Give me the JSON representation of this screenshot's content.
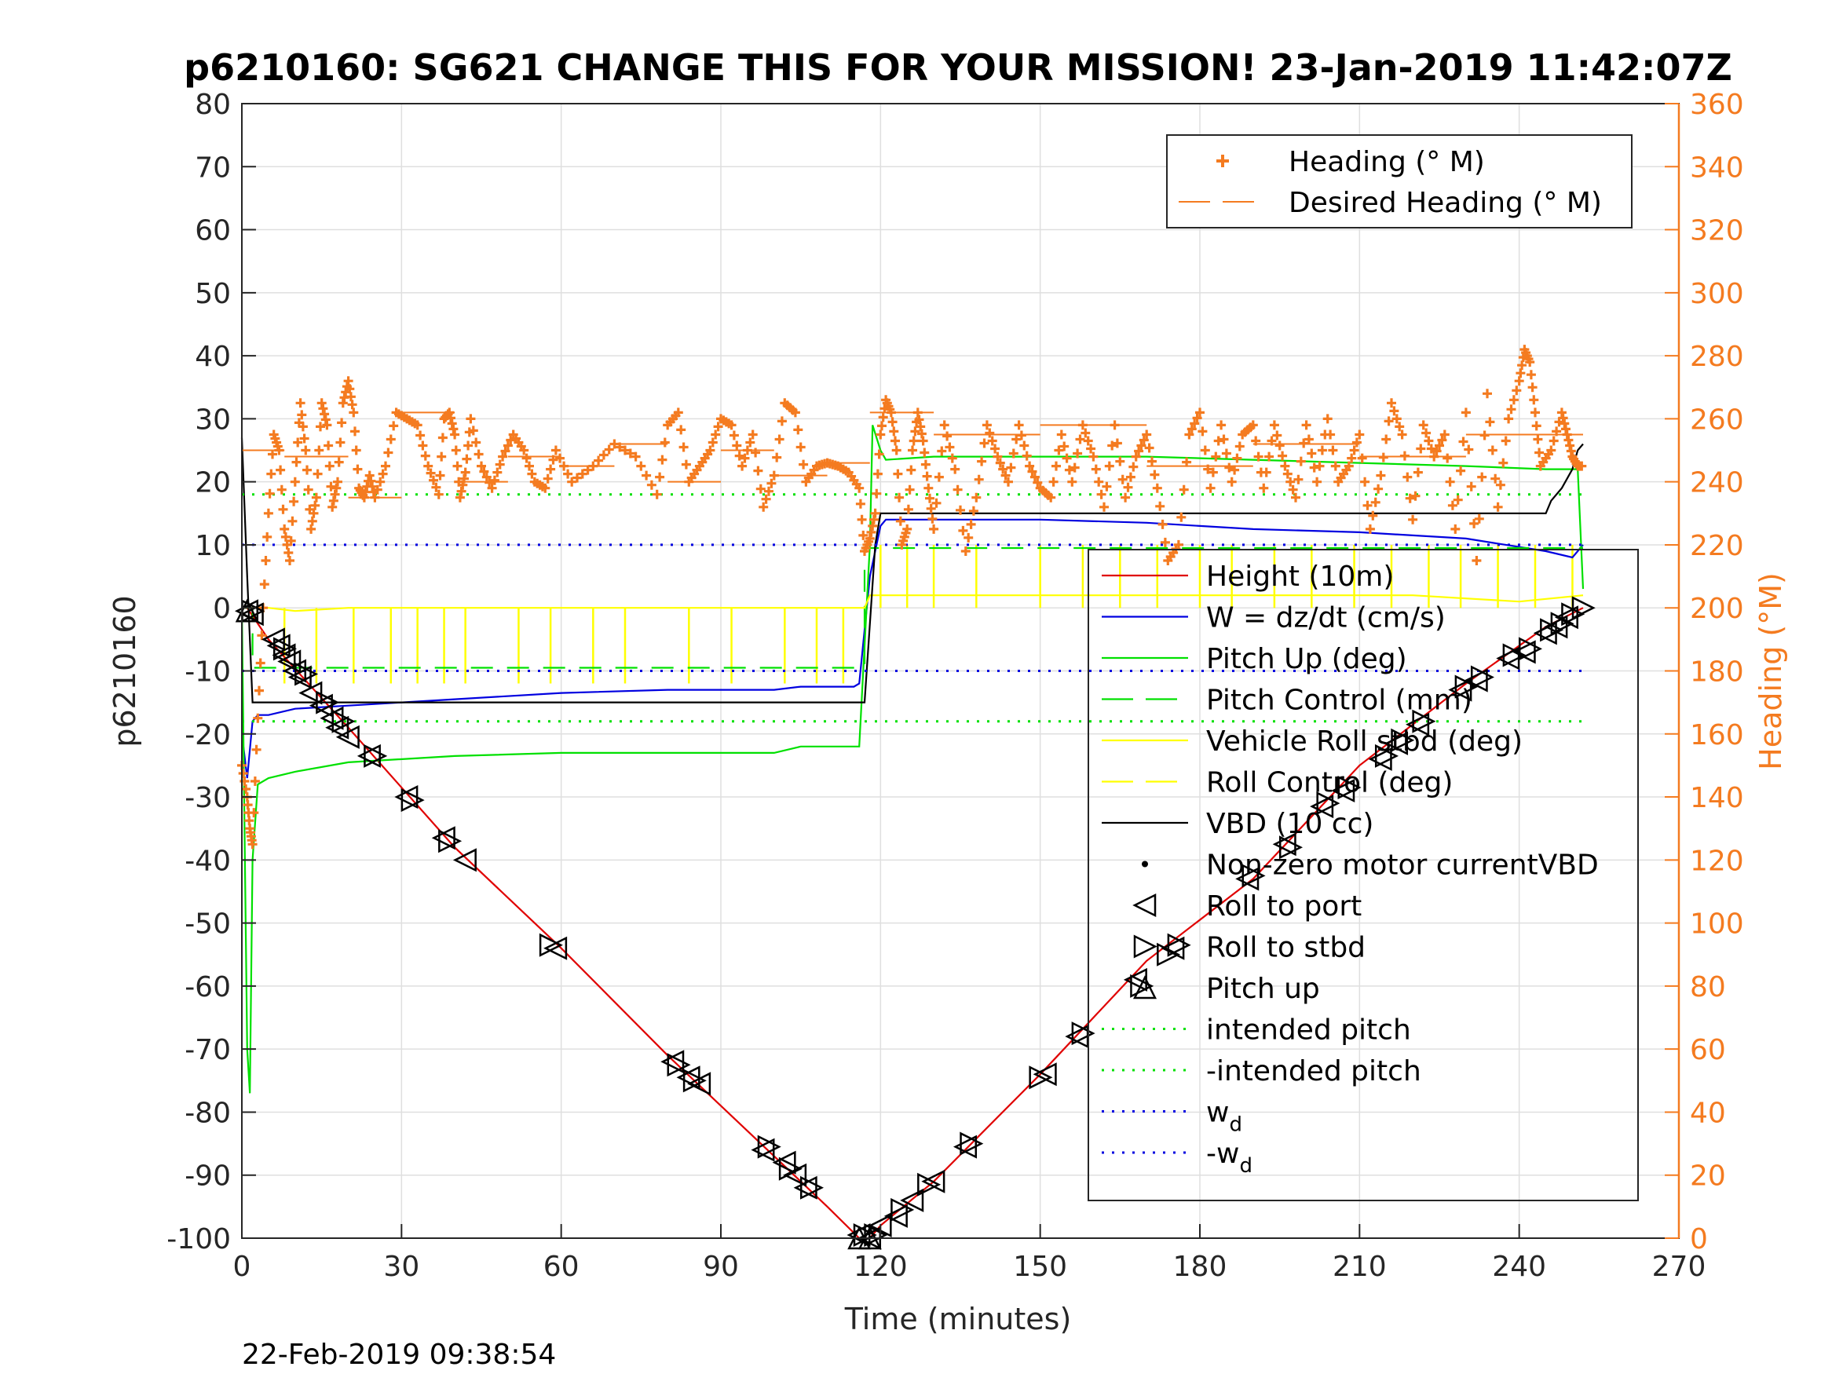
{
  "chart_data": {
    "type": "line",
    "title": "p6210160: SG621 CHANGE THIS FOR YOUR MISSION! 23-Jan-2019 11:42:07Z",
    "xlabel": "Time (minutes)",
    "ylabel": "p6210160",
    "ylabel_right": "Heading (°M)",
    "xlim": [
      0,
      270
    ],
    "ylim": [
      -100,
      80
    ],
    "ylim_right": [
      0,
      360
    ],
    "x_ticks": [
      "0",
      "30",
      "60",
      "90",
      "120",
      "150",
      "180",
      "210",
      "240",
      "270"
    ],
    "y_ticks": [
      "80",
      "70",
      "60",
      "50",
      "40",
      "30",
      "20",
      "10",
      "0",
      "-10",
      "-20",
      "-30",
      "-40",
      "-50",
      "-60",
      "-70",
      "-80",
      "-90",
      "-100"
    ],
    "y_ticks_right": [
      "360",
      "340",
      "320",
      "300",
      "280",
      "260",
      "240",
      "220",
      "200",
      "180",
      "160",
      "140",
      "120",
      "100",
      "80",
      "60",
      "40",
      "20",
      "0"
    ],
    "grid": true,
    "timestamp": "22-Feb-2019 09:38:54",
    "legend_top": [
      {
        "label": "Heading (° M)",
        "color": "#f47b20",
        "style": "plus"
      },
      {
        "label": "Desired Heading (° M)",
        "color": "#f47b20",
        "style": "solid"
      }
    ],
    "legend_main": [
      {
        "label": "Height (10m)",
        "color": "#e00000",
        "style": "solid"
      },
      {
        "label": "W = dz/dt (cm/s)",
        "color": "#0000e0",
        "style": "solid"
      },
      {
        "label": "Pitch Up (deg)",
        "color": "#00e000",
        "style": "solid"
      },
      {
        "label": "Pitch Control (mm)",
        "color": "#00e000",
        "style": "dashed"
      },
      {
        "label": "Vehicle Roll stbd (deg)",
        "color": "#ffff00",
        "style": "solid"
      },
      {
        "label": "Roll Control (deg)",
        "color": "#ffff00",
        "style": "dashed"
      },
      {
        "label": "VBD (10 cc)",
        "color": "#000000",
        "style": "solid"
      },
      {
        "label": "Non-zero motor currentVBD",
        "color": "#000000",
        "style": "dot"
      },
      {
        "label": "Roll to port",
        "color": "#000000",
        "style": "tri-left"
      },
      {
        "label": "Roll to stbd",
        "color": "#000000",
        "style": "tri-right"
      },
      {
        "label": "Pitch up",
        "color": "#000000",
        "style": "tri-up"
      },
      {
        "label": "intended pitch",
        "color": "#00e000",
        "style": "dotted"
      },
      {
        "label": "-intended pitch",
        "color": "#00e000",
        "style": "dotted"
      },
      {
        "label": "w",
        "sub": "d",
        "color": "#0000e0",
        "style": "dotted"
      },
      {
        "label": "-w",
        "sub": "d",
        "color": "#0000e0",
        "style": "dotted"
      }
    ],
    "series": [
      {
        "name": "Height (10m)",
        "color": "#e00000",
        "x": [
          0,
          1,
          5,
          20,
          40,
          60,
          80,
          100,
          110,
          116,
          118,
          120,
          130,
          150,
          170,
          190,
          210,
          230,
          245,
          252
        ],
        "y": [
          0,
          0,
          -5,
          -19,
          -38,
          -54,
          -71,
          -87,
          -95,
          -100,
          -100,
          -98,
          -91,
          -74,
          -56,
          -43,
          -25,
          -12,
          -3,
          0
        ]
      },
      {
        "name": "W = dz/dt (cm/s)",
        "color": "#0000e0",
        "x": [
          0,
          1,
          2,
          3,
          5,
          10,
          20,
          40,
          60,
          80,
          100,
          105,
          110,
          115,
          116,
          118,
          120,
          121,
          130,
          150,
          170,
          190,
          210,
          230,
          245,
          250,
          252
        ],
        "y": [
          -20,
          -27,
          -18,
          -17,
          -17,
          -16,
          -15.5,
          -14.5,
          -13.5,
          -13,
          -13,
          -12.5,
          -12.5,
          -12.5,
          -12,
          5,
          13,
          14,
          14,
          14,
          13.5,
          12.5,
          12,
          11,
          9,
          8,
          10
        ]
      },
      {
        "name": "Pitch Up (deg)",
        "color": "#00e000",
        "x": [
          0,
          1,
          1.5,
          2,
          3,
          5,
          10,
          20,
          40,
          60,
          80,
          100,
          105,
          115,
          116,
          118,
          118.5,
          120,
          121,
          130,
          150,
          170,
          190,
          210,
          230,
          245,
          251,
          252
        ],
        "y": [
          0,
          -70,
          -77,
          -40,
          -28,
          -27,
          -26,
          -24.5,
          -23.5,
          -23,
          -23,
          -23,
          -22,
          -22,
          -22,
          10,
          29,
          25,
          23.5,
          24,
          24,
          24,
          23.5,
          23,
          22.5,
          22,
          22,
          3
        ]
      },
      {
        "name": "Pitch Control (mm)",
        "color": "#00e000",
        "x": [
          0,
          2,
          2,
          117,
          117,
          252
        ],
        "y": [
          0,
          0,
          -9.5,
          -9.5,
          9.5,
          9.5
        ],
        "dash": "28,18"
      },
      {
        "name": "Vehicle Roll stbd (deg)",
        "color": "#ffff00",
        "x": [
          0,
          5,
          10,
          20,
          40,
          60,
          80,
          100,
          116,
          117,
          118,
          120,
          125,
          140,
          160,
          180,
          200,
          220,
          240,
          252
        ],
        "y": [
          0,
          0,
          -0.5,
          0,
          0,
          0,
          0,
          0,
          0,
          0,
          2,
          2,
          2,
          2,
          2,
          2,
          2,
          2,
          1,
          2
        ]
      },
      {
        "name": "VBD (10 cc)",
        "color": "#000000",
        "x": [
          0,
          1,
          2,
          3,
          4,
          116,
          117,
          119,
          120,
          130,
          245,
          246,
          248,
          250,
          251,
          252
        ],
        "y": [
          27,
          5,
          -15,
          -15,
          -15,
          -15,
          -15,
          10,
          15,
          15,
          15,
          17,
          19,
          22,
          25,
          26
        ]
      },
      {
        "name": "intended pitch",
        "color": "#00e000",
        "x": [
          0,
          252
        ],
        "y": [
          18,
          18
        ],
        "dash": "3,10"
      },
      {
        "name": "-intended pitch",
        "color": "#00e000",
        "x": [
          0,
          252
        ],
        "y": [
          -18,
          -18
        ],
        "dash": "3,10"
      },
      {
        "name": "w_d",
        "color": "#0000e0",
        "x": [
          0,
          252
        ],
        "y": [
          10,
          10
        ],
        "dash": "3,10"
      },
      {
        "name": "-w_d",
        "color": "#0000e0",
        "x": [
          0,
          252
        ],
        "y": [
          -10,
          -10
        ],
        "dash": "3,10"
      }
    ],
    "heading_series": {
      "name": "Heading (° M)",
      "color": "#f47b20",
      "x": [
        0,
        1,
        1.5,
        2,
        3,
        4,
        5,
        6,
        7,
        8,
        9,
        10,
        11,
        12,
        13,
        14,
        15,
        16,
        17,
        18,
        19,
        20,
        21,
        22,
        23,
        24,
        25,
        27,
        29,
        31,
        33,
        35,
        37,
        38,
        39,
        40,
        41,
        42,
        43,
        45,
        47,
        49,
        51,
        53,
        55,
        57,
        59,
        62,
        66,
        70,
        74,
        78,
        80,
        82,
        84,
        86,
        88,
        90,
        92,
        94,
        96,
        98,
        100,
        102,
        104,
        106,
        108,
        110,
        112,
        114,
        116,
        117,
        118,
        119,
        120,
        121,
        122,
        123,
        124,
        125,
        126,
        127,
        128,
        129,
        130,
        132,
        134,
        136,
        138,
        140,
        142,
        144,
        146,
        148,
        150,
        152,
        154,
        156,
        158,
        160,
        162,
        164,
        166,
        168,
        170,
        172,
        174,
        176,
        178,
        180,
        182,
        184,
        186,
        188,
        190,
        192,
        194,
        196,
        198,
        200,
        202,
        204,
        206,
        208,
        210,
        212,
        214,
        216,
        218,
        220,
        222,
        224,
        226,
        228,
        230,
        232,
        234,
        236,
        238,
        240,
        241,
        242,
        243,
        244,
        246,
        248,
        249,
        250,
        251,
        252
      ],
      "y": [
        150,
        140,
        130,
        125,
        165,
        200,
        230,
        255,
        250,
        225,
        215,
        240,
        265,
        250,
        225,
        235,
        265,
        258,
        232,
        240,
        265,
        272,
        262,
        238,
        235,
        242,
        235,
        245,
        262,
        260,
        258,
        245,
        236,
        260,
        262,
        255,
        235,
        243,
        260,
        245,
        238,
        248,
        255,
        250,
        240,
        238,
        250,
        240,
        245,
        252,
        248,
        236,
        258,
        262,
        240,
        245,
        250,
        260,
        258,
        245,
        255,
        232,
        242,
        265,
        262,
        240,
        245,
        246,
        245,
        243,
        238,
        218,
        222,
        230,
        255,
        266,
        262,
        250,
        220,
        225,
        250,
        262,
        253,
        238,
        225,
        258,
        244,
        218,
        235,
        258,
        248,
        240,
        258,
        245,
        238,
        235,
        255,
        240,
        258,
        248,
        232,
        258,
        235,
        248,
        255,
        238,
        215,
        220,
        255,
        262,
        238,
        258,
        240,
        255,
        258,
        238,
        258,
        245,
        235,
        258,
        240,
        260,
        240,
        245,
        255,
        225,
        242,
        265,
        255,
        228,
        258,
        248,
        255,
        225,
        262,
        215,
        268,
        232,
        260,
        272,
        282,
        278,
        262,
        245,
        250,
        262,
        255,
        248,
        245,
        245
      ]
    },
    "desired_heading": {
      "name": "Desired Heading (° M)",
      "color": "#f47b20",
      "segments": [
        [
          0,
          8,
          250
        ],
        [
          8,
          20,
          248
        ],
        [
          20,
          30,
          235
        ],
        [
          30,
          40,
          262
        ],
        [
          40,
          50,
          240
        ],
        [
          50,
          60,
          248
        ],
        [
          60,
          70,
          245
        ],
        [
          70,
          80,
          252
        ],
        [
          80,
          90,
          240
        ],
        [
          90,
          100,
          250
        ],
        [
          100,
          110,
          242
        ],
        [
          110,
          118,
          246
        ],
        [
          118,
          130,
          262
        ],
        [
          130,
          150,
          255
        ],
        [
          150,
          170,
          258
        ],
        [
          170,
          190,
          245
        ],
        [
          190,
          210,
          252
        ],
        [
          210,
          230,
          248
        ],
        [
          230,
          252,
          255
        ]
      ]
    },
    "roll_port_markers": [
      [
        1,
        -0.5
      ],
      [
        2,
        -1
      ],
      [
        6,
        -5
      ],
      [
        7,
        -6
      ],
      [
        8,
        -7.5
      ],
      [
        9,
        -8.5
      ],
      [
        10,
        -10
      ],
      [
        11,
        -11
      ],
      [
        13,
        -13.5
      ],
      [
        15,
        -15.5
      ],
      [
        17,
        -17.5
      ],
      [
        18,
        -19
      ],
      [
        20,
        -20.5
      ],
      [
        24,
        -23.5
      ],
      [
        31,
        -30
      ],
      [
        38,
        -36.5
      ],
      [
        42,
        -40
      ],
      [
        59,
        -54
      ],
      [
        81,
        -72
      ],
      [
        84,
        -74.5
      ],
      [
        86,
        -75.5
      ],
      [
        98,
        -86
      ],
      [
        102,
        -88
      ],
      [
        104,
        -90
      ],
      [
        106,
        -92
      ],
      [
        116,
        -99.5
      ],
      [
        118,
        -100
      ],
      [
        120,
        -98
      ],
      [
        123,
        -96.5
      ],
      [
        126,
        -94
      ],
      [
        130,
        -91
      ],
      [
        136,
        -85.5
      ],
      [
        151,
        -74
      ],
      [
        157,
        -68
      ],
      [
        168,
        -59
      ],
      [
        175,
        -54
      ],
      [
        189,
        -43
      ],
      [
        196,
        -37.5
      ],
      [
        203,
        -31.5
      ],
      [
        207,
        -29
      ],
      [
        214,
        -24
      ],
      [
        217,
        -21.5
      ],
      [
        221,
        -18.5
      ],
      [
        229,
        -13
      ],
      [
        232,
        -11.5
      ],
      [
        238,
        -8
      ],
      [
        241,
        -7
      ],
      [
        245,
        -4
      ],
      [
        247,
        -3
      ],
      [
        249,
        -1.5
      ]
    ],
    "roll_stbd_markers": [
      [
        2,
        -0.5
      ],
      [
        8,
        -6.5
      ],
      [
        12,
        -10.5
      ],
      [
        16,
        -15
      ],
      [
        19,
        -18
      ],
      [
        25,
        -23.5
      ],
      [
        32,
        -30.5
      ],
      [
        39,
        -37
      ],
      [
        58,
        -53.5
      ],
      [
        82,
        -72.5
      ],
      [
        85,
        -75
      ],
      [
        99,
        -85.5
      ],
      [
        103,
        -89
      ],
      [
        107,
        -92
      ],
      [
        117,
        -99.5
      ],
      [
        119,
        -99.5
      ],
      [
        124,
        -95.5
      ],
      [
        129,
        -91.5
      ],
      [
        137,
        -85
      ],
      [
        150,
        -74.5
      ],
      [
        158,
        -67.5
      ],
      [
        169,
        -60
      ],
      [
        174,
        -55
      ],
      [
        176,
        -53.5
      ],
      [
        190,
        -42.5
      ],
      [
        197,
        -38
      ],
      [
        204,
        -31
      ],
      [
        208,
        -28.5
      ],
      [
        215,
        -23.5
      ],
      [
        218,
        -21
      ],
      [
        222,
        -18
      ],
      [
        230,
        -12.5
      ],
      [
        233,
        -11
      ],
      [
        239,
        -7.5
      ],
      [
        242,
        -6.5
      ],
      [
        246,
        -3.5
      ],
      [
        248,
        -2.5
      ],
      [
        250,
        -1
      ],
      [
        252,
        0
      ]
    ],
    "pitch_up_markers": [
      [
        1,
        -0.5
      ],
      [
        116,
        -100
      ],
      [
        118,
        -100
      ]
    ],
    "roll_control_spikes_x": [
      8,
      14,
      21,
      28,
      33,
      38,
      42,
      52,
      58,
      66,
      72,
      84,
      92,
      102,
      108,
      113,
      120,
      125,
      130,
      138,
      150,
      158,
      165,
      172,
      180,
      186,
      194,
      201,
      209,
      216,
      223,
      229,
      236,
      243,
      250
    ]
  }
}
